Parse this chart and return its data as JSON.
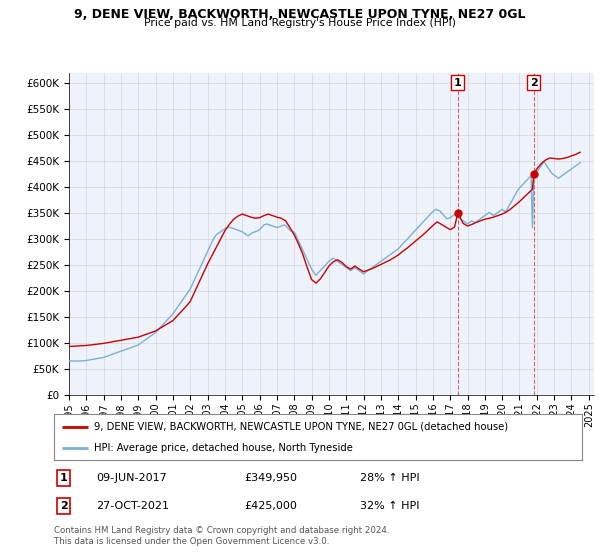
{
  "title": "9, DENE VIEW, BACKWORTH, NEWCASTLE UPON TYNE, NE27 0GL",
  "subtitle": "Price paid vs. HM Land Registry's House Price Index (HPI)",
  "ylim": [
    0,
    620000
  ],
  "yticks": [
    0,
    50000,
    100000,
    150000,
    200000,
    250000,
    300000,
    350000,
    400000,
    450000,
    500000,
    550000,
    600000
  ],
  "ytick_labels": [
    "£0",
    "£50K",
    "£100K",
    "£150K",
    "£200K",
    "£250K",
    "£300K",
    "£350K",
    "£400K",
    "£450K",
    "£500K",
    "£550K",
    "£600K"
  ],
  "property_color": "#cc0000",
  "hpi_color": "#7ab0d4",
  "vline_color": "#cc0000",
  "bg_color": "#eef2fa",
  "grid_color": "#cccccc",
  "legend_label_property": "9, DENE VIEW, BACKWORTH, NEWCASTLE UPON TYNE, NE27 0GL (detached house)",
  "legend_label_hpi": "HPI: Average price, detached house, North Tyneside",
  "sale1_date_label": "09-JUN-2017",
  "sale1_price": 349950,
  "sale1_hpi_pct": "28% ↑ HPI",
  "sale1_year": 2017.44,
  "sale2_date_label": "27-OCT-2021",
  "sale2_price": 425000,
  "sale2_hpi_pct": "32% ↑ HPI",
  "sale2_year": 2021.82,
  "footer": "Contains HM Land Registry data © Crown copyright and database right 2024.\nThis data is licensed under the Open Government Licence v3.0.",
  "hpi_data_x": [
    1995.0,
    1995.083,
    1995.167,
    1995.25,
    1995.333,
    1995.417,
    1995.5,
    1995.583,
    1995.667,
    1995.75,
    1995.833,
    1995.917,
    1996.0,
    1996.083,
    1996.167,
    1996.25,
    1996.333,
    1996.417,
    1996.5,
    1996.583,
    1996.667,
    1996.75,
    1996.833,
    1996.917,
    1997.0,
    1997.083,
    1997.167,
    1997.25,
    1997.333,
    1997.417,
    1997.5,
    1997.583,
    1997.667,
    1997.75,
    1997.833,
    1997.917,
    1998.0,
    1998.083,
    1998.167,
    1998.25,
    1998.333,
    1998.417,
    1998.5,
    1998.583,
    1998.667,
    1998.75,
    1998.833,
    1998.917,
    1999.0,
    1999.083,
    1999.167,
    1999.25,
    1999.333,
    1999.417,
    1999.5,
    1999.583,
    1999.667,
    1999.75,
    1999.833,
    1999.917,
    2000.0,
    2000.083,
    2000.167,
    2000.25,
    2000.333,
    2000.417,
    2000.5,
    2000.583,
    2000.667,
    2000.75,
    2000.833,
    2000.917,
    2001.0,
    2001.083,
    2001.167,
    2001.25,
    2001.333,
    2001.417,
    2001.5,
    2001.583,
    2001.667,
    2001.75,
    2001.833,
    2001.917,
    2002.0,
    2002.083,
    2002.167,
    2002.25,
    2002.333,
    2002.417,
    2002.5,
    2002.583,
    2002.667,
    2002.75,
    2002.833,
    2002.917,
    2003.0,
    2003.083,
    2003.167,
    2003.25,
    2003.333,
    2003.417,
    2003.5,
    2003.583,
    2003.667,
    2003.75,
    2003.833,
    2003.917,
    2004.0,
    2004.083,
    2004.167,
    2004.25,
    2004.333,
    2004.417,
    2004.5,
    2004.583,
    2004.667,
    2004.75,
    2004.833,
    2004.917,
    2005.0,
    2005.083,
    2005.167,
    2005.25,
    2005.333,
    2005.417,
    2005.5,
    2005.583,
    2005.667,
    2005.75,
    2005.833,
    2005.917,
    2006.0,
    2006.083,
    2006.167,
    2006.25,
    2006.333,
    2006.417,
    2006.5,
    2006.583,
    2006.667,
    2006.75,
    2006.833,
    2006.917,
    2007.0,
    2007.083,
    2007.167,
    2007.25,
    2007.333,
    2007.417,
    2007.5,
    2007.583,
    2007.667,
    2007.75,
    2007.833,
    2007.917,
    2008.0,
    2008.083,
    2008.167,
    2008.25,
    2008.333,
    2008.417,
    2008.5,
    2008.583,
    2008.667,
    2008.75,
    2008.833,
    2008.917,
    2009.0,
    2009.083,
    2009.167,
    2009.25,
    2009.333,
    2009.417,
    2009.5,
    2009.583,
    2009.667,
    2009.75,
    2009.833,
    2009.917,
    2010.0,
    2010.083,
    2010.167,
    2010.25,
    2010.333,
    2010.417,
    2010.5,
    2010.583,
    2010.667,
    2010.75,
    2010.833,
    2010.917,
    2011.0,
    2011.083,
    2011.167,
    2011.25,
    2011.333,
    2011.417,
    2011.5,
    2011.583,
    2011.667,
    2011.75,
    2011.833,
    2011.917,
    2012.0,
    2012.083,
    2012.167,
    2012.25,
    2012.333,
    2012.417,
    2012.5,
    2012.583,
    2012.667,
    2012.75,
    2012.833,
    2012.917,
    2013.0,
    2013.083,
    2013.167,
    2013.25,
    2013.333,
    2013.417,
    2013.5,
    2013.583,
    2013.667,
    2013.75,
    2013.833,
    2013.917,
    2014.0,
    2014.083,
    2014.167,
    2014.25,
    2014.333,
    2014.417,
    2014.5,
    2014.583,
    2014.667,
    2014.75,
    2014.833,
    2014.917,
    2015.0,
    2015.083,
    2015.167,
    2015.25,
    2015.333,
    2015.417,
    2015.5,
    2015.583,
    2015.667,
    2015.75,
    2015.833,
    2015.917,
    2016.0,
    2016.083,
    2016.167,
    2016.25,
    2016.333,
    2016.417,
    2016.5,
    2016.583,
    2016.667,
    2016.75,
    2016.833,
    2016.917,
    2017.0,
    2017.083,
    2017.167,
    2017.25,
    2017.333,
    2017.417,
    2017.5,
    2017.583,
    2017.667,
    2017.75,
    2017.833,
    2017.917,
    2018.0,
    2018.083,
    2018.167,
    2018.25,
    2018.333,
    2018.417,
    2018.5,
    2018.583,
    2018.667,
    2018.75,
    2018.833,
    2018.917,
    2019.0,
    2019.083,
    2019.167,
    2019.25,
    2019.333,
    2019.417,
    2019.5,
    2019.583,
    2019.667,
    2019.75,
    2019.833,
    2019.917,
    2020.0,
    2020.083,
    2020.167,
    2020.25,
    2020.333,
    2020.417,
    2020.5,
    2020.583,
    2020.667,
    2020.75,
    2020.833,
    2020.917,
    2021.0,
    2021.083,
    2021.167,
    2021.25,
    2021.333,
    2021.417,
    2021.5,
    2021.583,
    2021.667,
    2021.75,
    2021.833,
    2021.917,
    2022.0,
    2022.083,
    2022.167,
    2022.25,
    2022.333,
    2022.417,
    2022.5,
    2022.583,
    2022.667,
    2022.75,
    2022.833,
    2022.917,
    2023.0,
    2023.083,
    2023.167,
    2023.25,
    2023.333,
    2023.417,
    2023.5,
    2023.583,
    2023.667,
    2023.75,
    2023.833,
    2023.917,
    2024.0,
    2024.083,
    2024.167,
    2024.25,
    2024.333,
    2024.5
  ],
  "hpi_data_y": [
    65000,
    65200,
    65100,
    65000,
    64900,
    64800,
    64900,
    65000,
    65200,
    65400,
    65600,
    65800,
    66000,
    66500,
    67000,
    67500,
    68000,
    68500,
    69000,
    69500,
    70000,
    70500,
    71000,
    71500,
    72000,
    73000,
    74000,
    75000,
    76000,
    77000,
    78000,
    79000,
    80000,
    81000,
    82000,
    83000,
    84000,
    85000,
    86000,
    87000,
    88000,
    89000,
    90000,
    91000,
    92000,
    93000,
    94000,
    95000,
    96000,
    98000,
    100000,
    102000,
    104000,
    106000,
    108000,
    110000,
    112000,
    114000,
    116000,
    118000,
    120000,
    123000,
    126000,
    129000,
    132000,
    135000,
    138000,
    141000,
    144000,
    147000,
    150000,
    153000,
    156000,
    160000,
    164000,
    168000,
    172000,
    176000,
    180000,
    184000,
    188000,
    192000,
    196000,
    200000,
    204000,
    210000,
    216000,
    222000,
    228000,
    234000,
    240000,
    246000,
    252000,
    258000,
    264000,
    270000,
    276000,
    282000,
    288000,
    294000,
    300000,
    304000,
    308000,
    310000,
    312000,
    314000,
    316000,
    318000,
    320000,
    321000,
    322000,
    323000,
    322000,
    321000,
    320000,
    319000,
    318000,
    317000,
    316000,
    315000,
    314000,
    312000,
    310000,
    308000,
    306000,
    308000,
    310000,
    312000,
    313000,
    314000,
    315000,
    316000,
    318000,
    321000,
    324000,
    327000,
    328000,
    329000,
    328000,
    327000,
    326000,
    325000,
    324000,
    323000,
    322000,
    323000,
    324000,
    325000,
    326000,
    327000,
    326000,
    323000,
    320000,
    317000,
    315000,
    314000,
    313000,
    308000,
    302000,
    296000,
    290000,
    284000,
    278000,
    272000,
    266000,
    260000,
    254000,
    248000,
    242000,
    238000,
    234000,
    230000,
    233000,
    236000,
    239000,
    242000,
    245000,
    248000,
    251000,
    254000,
    257000,
    259000,
    261000,
    263000,
    261000,
    259000,
    257000,
    255000,
    253000,
    251000,
    249000,
    247000,
    245000,
    243000,
    241000,
    239000,
    241000,
    243000,
    245000,
    243000,
    241000,
    239000,
    237000,
    235000,
    233000,
    235000,
    237000,
    239000,
    241000,
    243000,
    245000,
    247000,
    249000,
    251000,
    253000,
    255000,
    257000,
    259000,
    261000,
    263000,
    265000,
    267000,
    269000,
    271000,
    273000,
    275000,
    277000,
    279000,
    281000,
    284000,
    287000,
    290000,
    293000,
    296000,
    299000,
    302000,
    305000,
    308000,
    311000,
    314000,
    317000,
    320000,
    323000,
    326000,
    329000,
    332000,
    335000,
    338000,
    341000,
    344000,
    347000,
    350000,
    353000,
    355000,
    357000,
    356000,
    355000,
    354000,
    350000,
    347000,
    344000,
    341000,
    339000,
    340000,
    341000,
    343000,
    345000,
    347000,
    345000,
    343000,
    341000,
    339000,
    337000,
    335000,
    333000,
    331000,
    329000,
    331000,
    333000,
    335000,
    333000,
    331000,
    333000,
    335000,
    337000,
    339000,
    341000,
    343000,
    345000,
    347000,
    349000,
    351000,
    349000,
    347000,
    345000,
    347000,
    349000,
    351000,
    353000,
    355000,
    357000,
    355000,
    353000,
    355000,
    360000,
    365000,
    370000,
    375000,
    380000,
    385000,
    390000,
    395000,
    398000,
    401000,
    404000,
    407000,
    410000,
    413000,
    416000,
    419000,
    421000,
    322000,
    425000,
    427000,
    429000,
    433000,
    437000,
    441000,
    445000,
    449000,
    445000,
    440000,
    436000,
    432000,
    428000,
    425000,
    423000,
    421000,
    419000,
    417000,
    419000,
    421000,
    423000,
    425000,
    427000,
    429000,
    431000,
    433000,
    435000,
    437000,
    439000,
    441000,
    443000,
    447000
  ],
  "prop_data_x": [
    1995.0,
    1995.25,
    1995.5,
    1995.75,
    1996.0,
    1996.25,
    1996.5,
    1996.75,
    1997.0,
    1997.25,
    1997.5,
    1997.75,
    1998.0,
    1998.25,
    1998.5,
    1998.75,
    1999.0,
    1999.25,
    1999.5,
    1999.75,
    2000.0,
    2000.25,
    2000.5,
    2000.75,
    2001.0,
    2001.25,
    2001.5,
    2001.75,
    2002.0,
    2002.25,
    2002.5,
    2002.75,
    2003.0,
    2003.25,
    2003.5,
    2003.75,
    2004.0,
    2004.25,
    2004.5,
    2004.75,
    2005.0,
    2005.25,
    2005.5,
    2005.75,
    2006.0,
    2006.25,
    2006.5,
    2006.75,
    2007.0,
    2007.25,
    2007.5,
    2007.75,
    2008.0,
    2008.25,
    2008.5,
    2008.75,
    2009.0,
    2009.25,
    2009.5,
    2009.75,
    2010.0,
    2010.25,
    2010.5,
    2010.75,
    2011.0,
    2011.25,
    2011.5,
    2011.75,
    2012.0,
    2012.25,
    2012.5,
    2012.75,
    2013.0,
    2013.25,
    2013.5,
    2013.75,
    2014.0,
    2014.25,
    2014.5,
    2014.75,
    2015.0,
    2015.25,
    2015.5,
    2015.75,
    2016.0,
    2016.25,
    2016.5,
    2016.75,
    2017.0,
    2017.25,
    2017.44,
    2017.75,
    2018.0,
    2018.25,
    2018.5,
    2018.75,
    2019.0,
    2019.25,
    2019.5,
    2019.75,
    2020.0,
    2020.25,
    2020.5,
    2020.75,
    2021.0,
    2021.25,
    2021.5,
    2021.75,
    2021.82,
    2022.0,
    2022.25,
    2022.5,
    2022.75,
    2023.0,
    2023.25,
    2023.5,
    2023.75,
    2024.0,
    2024.25,
    2024.5
  ],
  "prop_data_y": [
    93000,
    93500,
    94000,
    94500,
    95000,
    96000,
    97000,
    98000,
    99000,
    100500,
    102000,
    103500,
    105000,
    106500,
    108000,
    109500,
    111000,
    114000,
    117000,
    120000,
    123000,
    128000,
    133000,
    138000,
    143000,
    152000,
    161000,
    170000,
    180000,
    198000,
    216000,
    234000,
    252000,
    268000,
    284000,
    300000,
    316000,
    328000,
    338000,
    344000,
    348000,
    345000,
    342000,
    340000,
    341000,
    345000,
    348000,
    345000,
    342000,
    340000,
    335000,
    322000,
    308000,
    290000,
    270000,
    245000,
    222000,
    215000,
    223000,
    235000,
    248000,
    256000,
    260000,
    255000,
    247000,
    242000,
    248000,
    242000,
    237000,
    240000,
    243000,
    247000,
    251000,
    255000,
    259000,
    264000,
    269000,
    276000,
    282000,
    289000,
    296000,
    303000,
    310000,
    318000,
    326000,
    333000,
    328000,
    323000,
    318000,
    323000,
    349950,
    330000,
    325000,
    328000,
    332000,
    335000,
    338000,
    340000,
    342000,
    345000,
    348000,
    352000,
    358000,
    365000,
    372000,
    380000,
    388000,
    396000,
    425000,
    435000,
    445000,
    452000,
    456000,
    455000,
    454000,
    455000,
    457000,
    460000,
    463000,
    467000
  ]
}
